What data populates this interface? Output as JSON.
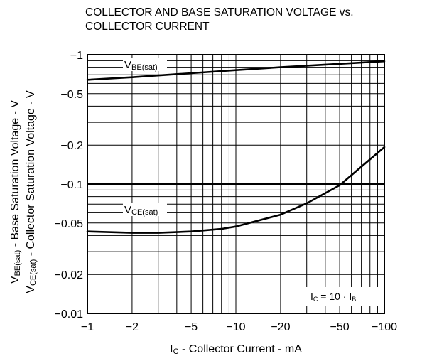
{
  "chart_data": {
    "type": "line",
    "title": [
      "COLLECTOR AND BASE SATURATION VOLTAGE vs.",
      "COLLECTOR CURRENT"
    ],
    "xlabel": {
      "main": "I",
      "sub": "C",
      "rest": " - Collector Current - mA"
    },
    "ylabel": [
      {
        "main": "V",
        "sub": "BE(sat)",
        "rest": " - Base Saturation Voltage - V"
      },
      {
        "main": "V",
        "sub": "CE(sat)",
        "rest": " - Collector Saturation Voltage - V"
      }
    ],
    "x_scale": "log",
    "y_scale": "log",
    "xlim": [
      -1,
      -100
    ],
    "ylim": [
      -0.01,
      -1
    ],
    "x_ticks": [
      -1,
      -2,
      -5,
      -10,
      -20,
      -50,
      -100
    ],
    "x_tick_labels": [
      "−1",
      "−2",
      "−5",
      "−10",
      "−20",
      "−50",
      "−100"
    ],
    "y_ticks": [
      -1,
      -0.5,
      -0.2,
      -0.1,
      -0.05,
      -0.02,
      -0.01
    ],
    "y_tick_labels": [
      "−1",
      "−0.5",
      "−0.2",
      "−0.1",
      "−0.05",
      "−0.02",
      "−0.01"
    ],
    "grid": true,
    "series": [
      {
        "name": {
          "main": "V",
          "sub": "BE(sat)"
        },
        "x": [
          -1,
          -2,
          -5,
          -10,
          -20,
          -50,
          -100
        ],
        "y": [
          -0.64,
          -0.67,
          -0.72,
          -0.76,
          -0.8,
          -0.85,
          -0.89
        ]
      },
      {
        "name": {
          "main": "V",
          "sub": "CE(sat)"
        },
        "x": [
          -1,
          -2,
          -3,
          -5,
          -8,
          -10,
          -20,
          -30,
          -50,
          -100
        ],
        "y": [
          -0.043,
          -0.042,
          -0.042,
          -0.043,
          -0.045,
          -0.047,
          -0.058,
          -0.071,
          -0.098,
          -0.193
        ]
      }
    ],
    "annotation": {
      "p1": "I",
      "s1": "C",
      "mid": " = 10 · I",
      "s2": "B"
    }
  }
}
